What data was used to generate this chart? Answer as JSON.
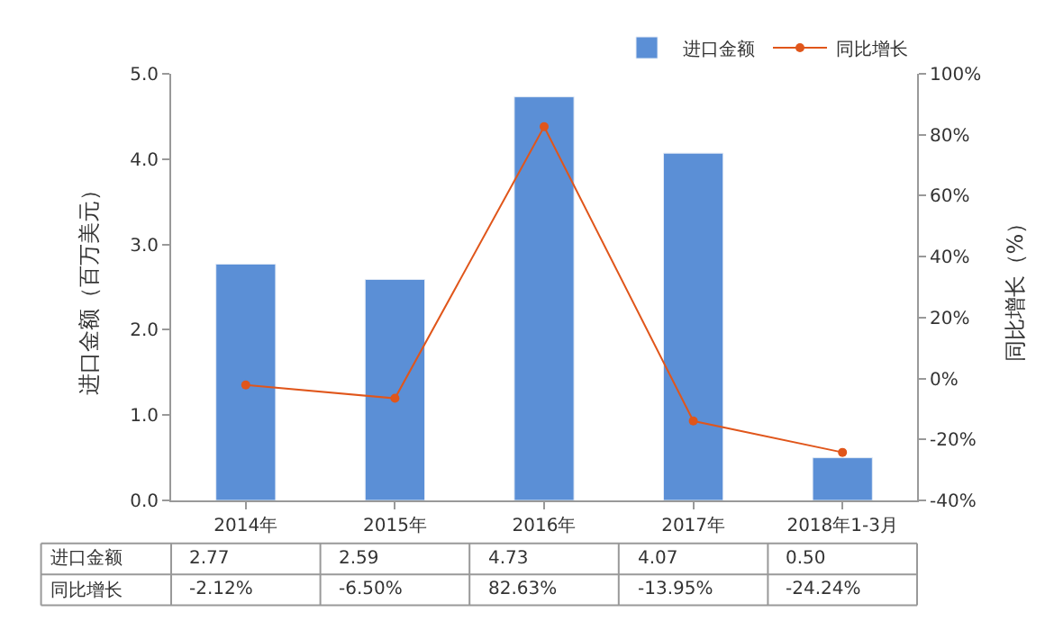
{
  "chart_data": {
    "type": "bar",
    "categories": [
      "2014年",
      "2015年",
      "2016年",
      "2017年",
      "2018年1-3月"
    ],
    "series": [
      {
        "name": "进口金额",
        "color": "#5b8fd6",
        "values": [
          2.77,
          2.59,
          4.73,
          4.07,
          0.5
        ],
        "value_labels": [
          "2.77",
          "2.59",
          "4.73",
          "4.07",
          "0.50"
        ]
      },
      {
        "name": "同比增长",
        "type": "line",
        "axis": "y2",
        "color": "#e0561b",
        "marker": "circle",
        "line_style": "solid",
        "values": [
          -2.12,
          -6.5,
          82.63,
          -13.95,
          -24.24
        ],
        "value_labels": [
          "-2.12%",
          "-6.50%",
          "82.63%",
          "-13.95%",
          "-24.24%"
        ]
      }
    ],
    "ylabel": "进口金额（百万美元）",
    "y2label": "同比增长（%）",
    "ylim": [
      0,
      5
    ],
    "yticks": [
      {
        "value": 0,
        "label": "0.0"
      },
      {
        "value": 1,
        "label": "1.0"
      },
      {
        "value": 2,
        "label": "2.0"
      },
      {
        "value": 3,
        "label": "3.0"
      },
      {
        "value": 4,
        "label": "4.0"
      },
      {
        "value": 5,
        "label": "5.0"
      }
    ],
    "y2lim": [
      -40,
      100
    ],
    "y2ticks": [
      {
        "value": -40,
        "label": "-40%"
      },
      {
        "value": -20,
        "label": "-20%"
      },
      {
        "value": 0,
        "label": "0%"
      },
      {
        "value": 20,
        "label": "20%"
      },
      {
        "value": 40,
        "label": "40%"
      },
      {
        "value": 60,
        "label": "60%"
      },
      {
        "value": 80,
        "label": "80%"
      },
      {
        "value": 100,
        "label": "100%"
      }
    ],
    "legend": "top right"
  }
}
